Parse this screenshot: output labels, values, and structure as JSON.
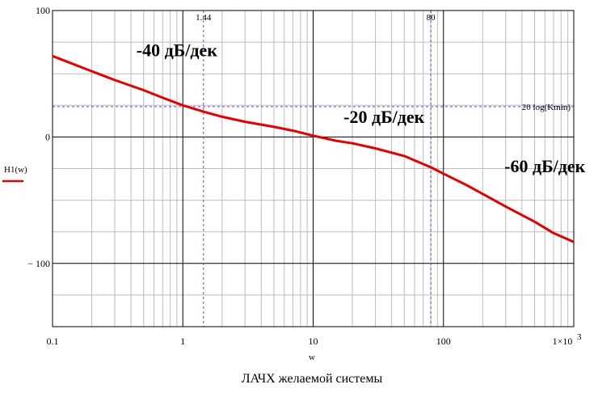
{
  "chart_data": {
    "type": "line",
    "title": "ЛАЧХ желаемой системы",
    "xlabel": "w",
    "ylabel": "H1(w)",
    "xscale": "log",
    "xlim": [
      0.1,
      1000
    ],
    "ylim": [
      -150,
      100
    ],
    "x_tick_labels": [
      "0.1",
      "1",
      "10",
      "100",
      "1×10"
    ],
    "x_tick_exp": "3",
    "x_tick_values": [
      0.1,
      1,
      10,
      100,
      1000
    ],
    "y_tick_labels": [
      "100",
      "0",
      "− 100"
    ],
    "y_tick_values": [
      100,
      0,
      -100
    ],
    "grid": true,
    "series": [
      {
        "name": "H1(w)",
        "color": "#e00000",
        "x": [
          0.1,
          0.2,
          0.3,
          0.5,
          0.7,
          1,
          1.44,
          2,
          3,
          5,
          7,
          10,
          15,
          20,
          30,
          50,
          80,
          100,
          150,
          200,
          300,
          500,
          700,
          1000
        ],
        "y": [
          64,
          52,
          45,
          37,
          31,
          25,
          20,
          16,
          12,
          8,
          5,
          1,
          -3,
          -5,
          -9,
          -15,
          -24,
          -29,
          -38,
          -45,
          -55,
          -67,
          -76,
          -83
        ]
      }
    ],
    "reference_lines": [
      {
        "orientation": "horizontal",
        "value": 24,
        "label": "20 log(Kmin)",
        "color": "#6a3fcf"
      },
      {
        "orientation": "vertical",
        "value": 1.44,
        "label": "1.44",
        "color": "#6a3fcf"
      },
      {
        "orientation": "vertical",
        "value": 80,
        "label": "80",
        "color": "#6a3fcf"
      }
    ],
    "annotations": [
      {
        "text": "-40 дБ/дек",
        "x": 0.9,
        "y": 64
      },
      {
        "text": "-20 дБ/дек",
        "x": 35,
        "y": 11
      },
      {
        "text": "-60 дБ/дек",
        "x": 600,
        "y": -28
      }
    ]
  }
}
